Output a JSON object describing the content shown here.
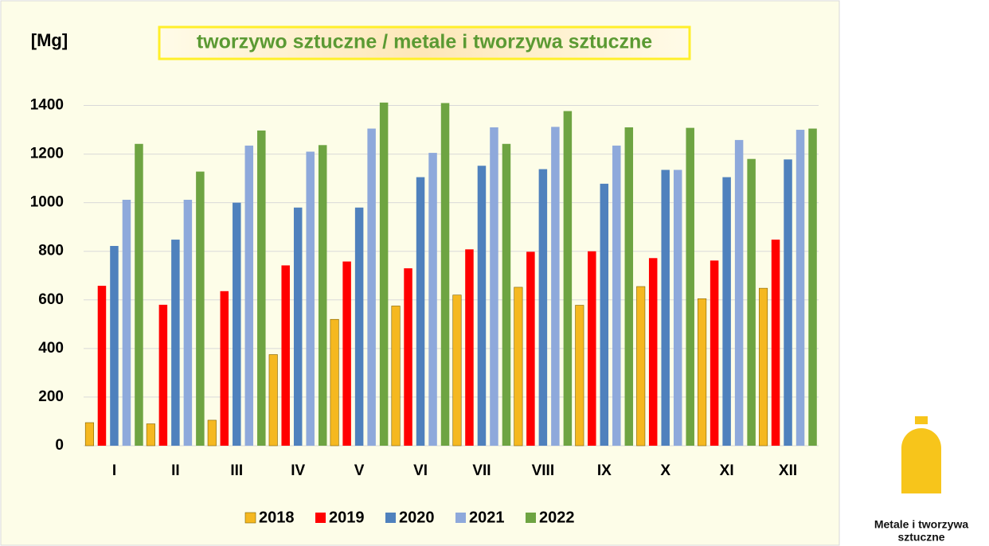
{
  "chart_data": {
    "type": "bar",
    "title": "tworzywo sztuczne / metale i tworzywa sztuczne",
    "y_label": "[Mg]",
    "categories": [
      "I",
      "II",
      "III",
      "IV",
      "V",
      "VI",
      "VII",
      "VIII",
      "IX",
      "X",
      "XI",
      "XII"
    ],
    "series": [
      {
        "name": "2018",
        "color": "#f5b820",
        "values": [
          95,
          90,
          105,
          375,
          520,
          575,
          620,
          652,
          578,
          655,
          605,
          648
        ]
      },
      {
        "name": "2019",
        "color": "#ff0000",
        "values": [
          658,
          580,
          636,
          742,
          758,
          730,
          808,
          798,
          800,
          772,
          762,
          848
        ]
      },
      {
        "name": "2020",
        "color": "#4f81bd",
        "values": [
          822,
          848,
          1000,
          980,
          980,
          1105,
          1152,
          1138,
          1078,
          1135,
          1105,
          1178
        ]
      },
      {
        "name": "2021",
        "color": "#8ea9db",
        "values": [
          1012,
          1012,
          1235,
          1210,
          1305,
          1205,
          1310,
          1312,
          1235,
          1135,
          1258,
          1300
        ]
      },
      {
        "name": "2022",
        "color": "#6ea442",
        "values": [
          1242,
          1128,
          1297,
          1237,
          1412,
          1410,
          1242,
          1377,
          1310,
          1308,
          1180,
          1305
        ]
      }
    ],
    "ylim": [
      0,
      1500
    ],
    "yticks": [
      0,
      200,
      400,
      600,
      800,
      1000,
      1200,
      1400
    ],
    "grid": true,
    "legend": "bottom"
  },
  "logo": {
    "lines": [
      "Metale i tworzywa",
      "sztuczne"
    ]
  }
}
